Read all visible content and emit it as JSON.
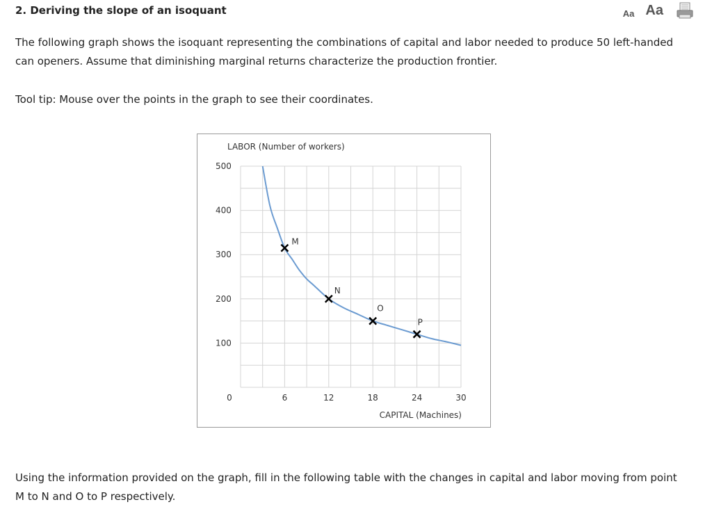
{
  "question": {
    "title": "2. Deriving the slope of an isoquant",
    "paragraph1": "The following graph shows the isoquant representing the combinations of capital and labor needed to produce 50 left-handed can openers. Assume that diminishing marginal returns characterize the production frontier.",
    "tooltip_note": "Tool tip: Mouse over the points in the graph to see their coordinates.",
    "paragraph2": "Using the information provided on the graph, fill in the following table with the changes in capital and labor moving from point M to N and O to P respectively."
  },
  "toolbar": {
    "font_small_label": "Aa",
    "font_large_label": "Aa",
    "print_icon": "print-icon"
  },
  "colors": {
    "curve": "#6b9bd1",
    "grid": "#d4d4d4",
    "marker": "#000000"
  },
  "chart_data": {
    "type": "line",
    "title": "",
    "xlabel": "CAPITAL (Machines)",
    "ylabel": "LABOR (Number of workers)",
    "xlim": [
      0,
      30
    ],
    "ylim": [
      0,
      500
    ],
    "xticks": [
      0,
      6,
      12,
      18,
      24,
      30
    ],
    "yticks": [
      100,
      200,
      300,
      400,
      500
    ],
    "grid": true,
    "series": [
      {
        "x": [
          3,
          4,
          5,
          6,
          7,
          8,
          9,
          10,
          12,
          14,
          16,
          18,
          20,
          22,
          24,
          26,
          28,
          30
        ],
        "y": [
          500,
          410,
          360,
          315,
          290,
          265,
          245,
          230,
          200,
          180,
          165,
          150,
          140,
          130,
          120,
          110,
          103,
          95
        ]
      }
    ],
    "points": [
      {
        "label": "M",
        "x": 6,
        "y": 315
      },
      {
        "label": "N",
        "x": 12,
        "y": 200
      },
      {
        "label": "O",
        "x": 18,
        "y": 150
      },
      {
        "label": "P",
        "x": 24,
        "y": 120
      }
    ]
  }
}
